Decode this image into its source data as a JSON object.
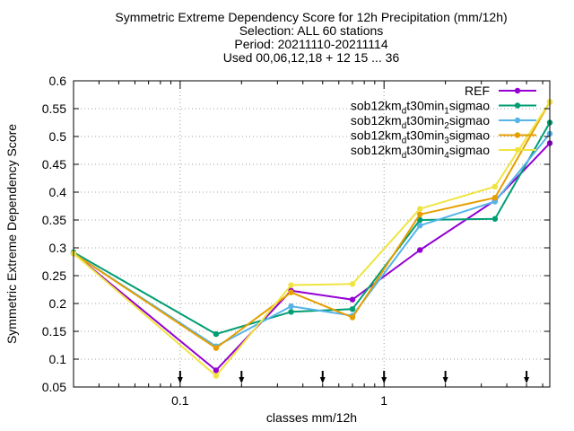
{
  "chart_data": {
    "type": "line",
    "title_lines": [
      "Symmetric Extreme Dependency Score  for 12h Precipitation (mm/12h)",
      "Selection: ALL     60 stations",
      "Period: 20211110-20211114",
      "Used 00,06,12,18 + 12 15 ... 36"
    ],
    "xlabel": "classes mm/12h",
    "ylabel": "Symmetric Extreme Dependency Score",
    "xscale": "log",
    "xlim": [
      0.03,
      6.5
    ],
    "ylim": [
      0.05,
      0.6
    ],
    "yticks": [
      "0.05",
      "0.1",
      "0.15",
      "0.2",
      "0.25",
      "0.3",
      "0.35",
      "0.4",
      "0.45",
      "0.5",
      "0.55",
      "0.6"
    ],
    "xticks": [
      {
        "value": 0.1,
        "label": "0.1"
      },
      {
        "value": 1,
        "label": "1"
      }
    ],
    "grid": true,
    "legend_position": "top-right",
    "threshold_markers": [
      0.1,
      0.2,
      0.5,
      1,
      2,
      5
    ],
    "x": [
      0.03,
      0.15,
      0.35,
      0.7,
      1.5,
      3.5,
      6.5
    ],
    "series": [
      {
        "name": "REF",
        "color": "#9400d3",
        "values": [
          0.29,
          0.08,
          0.223,
          0.207,
          0.296,
          0.385,
          0.488
        ]
      },
      {
        "name": "sob12km_d t30min_1 sigmao",
        "color": "#009e73",
        "values": [
          0.292,
          0.145,
          0.185,
          0.19,
          0.35,
          0.352,
          0.525
        ]
      },
      {
        "name": "sob12km_d t30min_2 sigmao",
        "color": "#56b4e9",
        "values": [
          0.29,
          0.123,
          0.195,
          0.178,
          0.34,
          0.383,
          0.505
        ]
      },
      {
        "name": "sob12km_d t30min_3 sigmao",
        "color": "#e69f00",
        "values": [
          0.29,
          0.12,
          0.22,
          0.175,
          0.36,
          0.39,
          0.562
        ]
      },
      {
        "name": "sob12km_d t30min_4 sigmao",
        "color": "#f0e442",
        "values": [
          0.29,
          0.07,
          0.233,
          0.235,
          0.37,
          0.41,
          0.562
        ]
      }
    ],
    "legend_labels": [
      {
        "base": "REF"
      },
      {
        "base": "sob12km",
        "sub1": "d",
        "mid": "t30min",
        "sub2": "1",
        "tail": "sigmao"
      },
      {
        "base": "sob12km",
        "sub1": "d",
        "mid": "t30min",
        "sub2": "2",
        "tail": "sigmao"
      },
      {
        "base": "sob12km",
        "sub1": "d",
        "mid": "t30min",
        "sub2": "3",
        "tail": "sigmao"
      },
      {
        "base": "sob12km",
        "sub1": "d",
        "mid": "t30min",
        "sub2": "4",
        "tail": "sigmao"
      }
    ]
  }
}
